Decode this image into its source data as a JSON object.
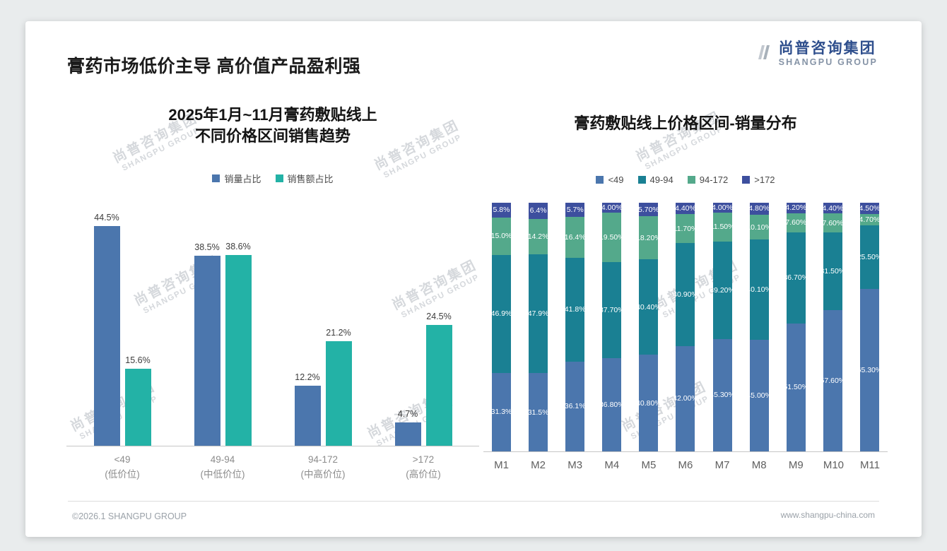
{
  "page": {
    "title": "膏药市场低价主导 高价值产品盈利强",
    "logo": {
      "cn": "尚普咨询集团",
      "en": "SHANGPU GROUP"
    },
    "watermark": {
      "cn": "尚普咨询集团",
      "en": "SHANGPU GROUP"
    },
    "footer": {
      "left": "©2026.1 SHANGPU GROUP",
      "right": "www.shangpu-china.com"
    }
  },
  "colors": {
    "volume_blue": "#4b76ad",
    "sales_teal": "#23b2a6",
    "band_teal_dark": "#1a8093",
    "band_green": "#54a98b",
    "band_navy": "#3d4f9e",
    "logo_navy": "#2f4f8d"
  },
  "chart_data": [
    {
      "type": "bar",
      "stacked": false,
      "title_lines": [
        "2025年1月~11月膏药敷贴线上",
        "不同价格区间销售趋势"
      ],
      "legend_position": "top",
      "grid": false,
      "ylim": [
        0,
        50
      ],
      "value_suffix": "%",
      "categories": [
        "<49",
        "49-94",
        "94-172",
        ">172"
      ],
      "category_sublabels": [
        "(低价位)",
        "(中低价位)",
        "(中高价位)",
        "(高价位)"
      ],
      "series": [
        {
          "name": "销量占比",
          "color": "#4b76ad",
          "values": [
            44.5,
            38.5,
            12.2,
            4.7
          ]
        },
        {
          "name": "销售额占比",
          "color": "#23b2a6",
          "values": [
            15.6,
            38.6,
            21.2,
            24.5
          ]
        }
      ]
    },
    {
      "type": "bar",
      "stacked": true,
      "title": "膏药敷贴线上价格区间-销量分布",
      "legend_position": "top",
      "grid": false,
      "ylim": [
        0,
        100
      ],
      "value_suffix": "%",
      "categories": [
        "M1",
        "M2",
        "M3",
        "M4",
        "M5",
        "M6",
        "M7",
        "M8",
        "M9",
        "M10",
        "M11"
      ],
      "series": [
        {
          "name": "<49",
          "color": "#4b76ad",
          "values": [
            31.3,
            31.5,
            36.1,
            36.8,
            40.8,
            42.0,
            45.3,
            45.0,
            51.5,
            57.6,
            65.3
          ],
          "labels": [
            "31.3%",
            "31.5%",
            "36.1%",
            "36.80%",
            "40.80%",
            "42.00%",
            "45.30%",
            "45.00%",
            "51.50%",
            "57.60%",
            "65.30%"
          ]
        },
        {
          "name": "49-94",
          "color": "#1a8093",
          "values": [
            46.9,
            47.9,
            41.8,
            37.7,
            40.4,
            40.9,
            39.2,
            40.1,
            36.7,
            31.5,
            25.5
          ],
          "labels": [
            "46.9%",
            "47.9%",
            "41.8%",
            "37.70%",
            "40.40%",
            "40.90%",
            "39.20%",
            "40.10%",
            "36.70%",
            "31.50%",
            "25.50%"
          ]
        },
        {
          "name": "94-172",
          "color": "#54a98b",
          "values": [
            15.0,
            14.2,
            16.4,
            19.5,
            18.2,
            11.7,
            11.5,
            10.1,
            7.6,
            7.6,
            4.7
          ],
          "labels": [
            "15.0%",
            "14.2%",
            "16.4%",
            "19.50%",
            "18.20%",
            "11.70%",
            "11.50%",
            "10.10%",
            "7.60%",
            "7.60%",
            "4.70%"
          ]
        },
        {
          "name": ">172",
          "color": "#3d4f9e",
          "values": [
            5.8,
            6.4,
            5.7,
            4.0,
            5.7,
            4.4,
            4.0,
            4.8,
            4.2,
            4.4,
            4.5
          ],
          "labels": [
            "5.8%",
            "6.4%",
            "5.7%",
            "4.00%",
            "5.70%",
            "4.40%",
            "4.00%",
            "4.80%",
            "4.20%",
            "4.40%",
            "4.50%"
          ]
        }
      ]
    }
  ]
}
